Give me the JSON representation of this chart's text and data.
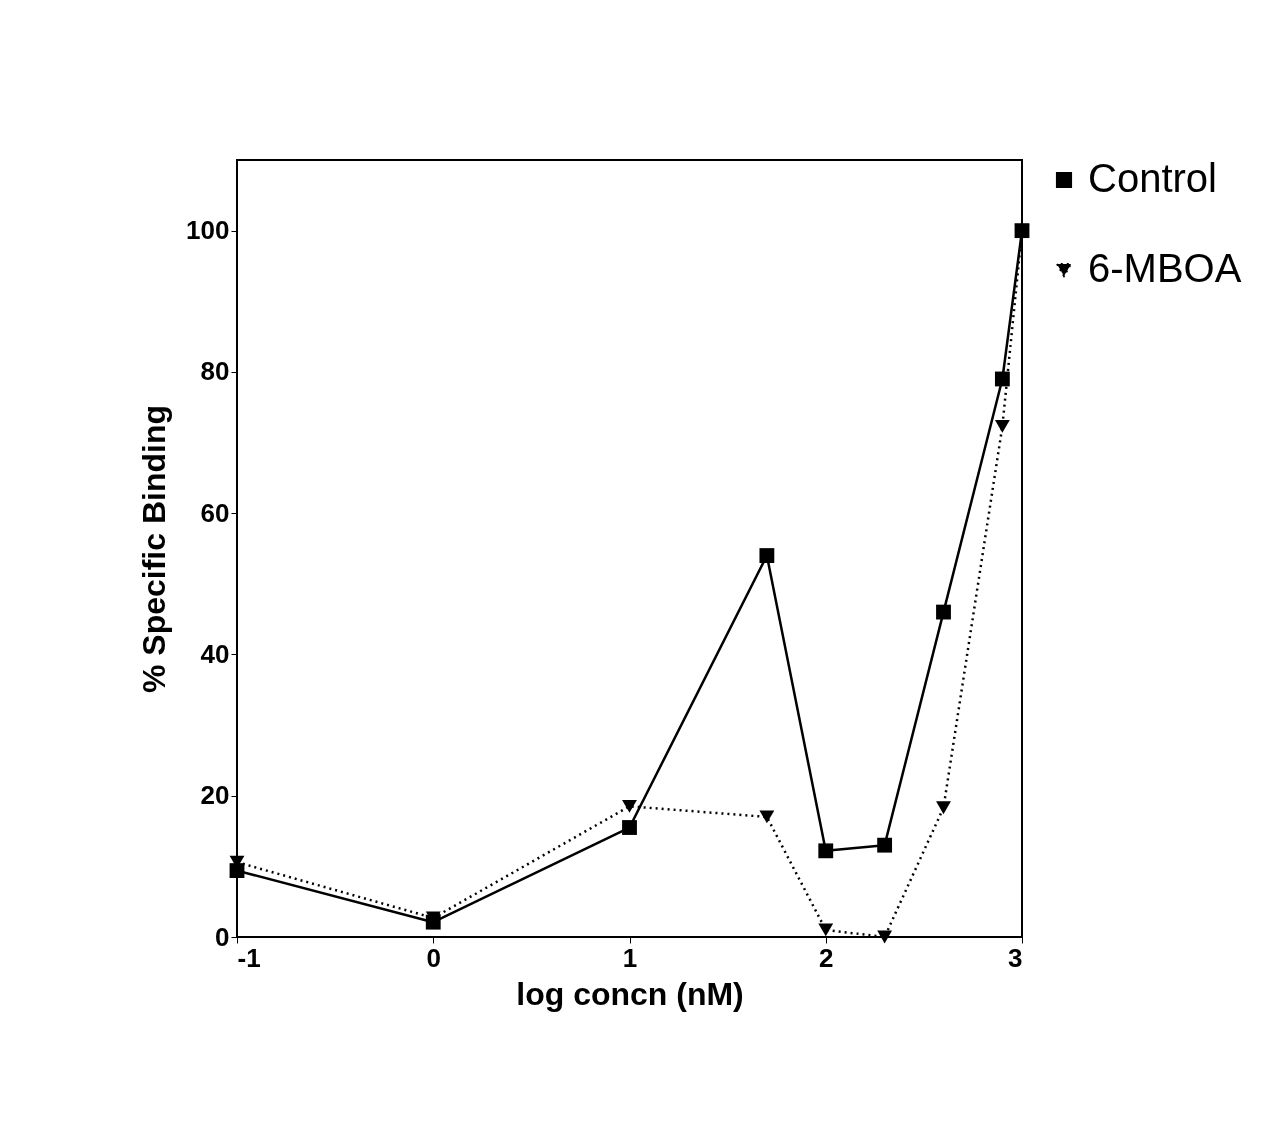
{
  "chart_data": {
    "type": "line",
    "xlabel": "log concn (nM)",
    "ylabel": "%  Specific Binding",
    "xlim": [
      -1,
      3
    ],
    "ylim": [
      0,
      110
    ],
    "xticks": [
      -1,
      0,
      1,
      2,
      3
    ],
    "yticks": [
      0,
      20,
      40,
      60,
      80,
      100
    ],
    "grid": false,
    "legend": "right",
    "series": [
      {
        "name": "Control",
        "color": "#000000",
        "marker": "square",
        "line_style": "solid",
        "x": [
          -1,
          0,
          1,
          1.7,
          2,
          2.3,
          2.6,
          2.9,
          3
        ],
        "values": [
          9.4,
          2.1,
          15.5,
          54,
          12.2,
          13,
          46,
          79,
          100
        ]
      },
      {
        "name": "6-MBOA",
        "color": "#000000",
        "marker": "triangle",
        "line_style": "dotted",
        "x": [
          -1,
          0,
          1,
          1.7,
          2,
          2.3,
          2.6,
          2.9,
          3
        ],
        "values": [
          10.6,
          2.7,
          18.5,
          17,
          1,
          0,
          18.3,
          72.3,
          100
        ]
      }
    ]
  }
}
